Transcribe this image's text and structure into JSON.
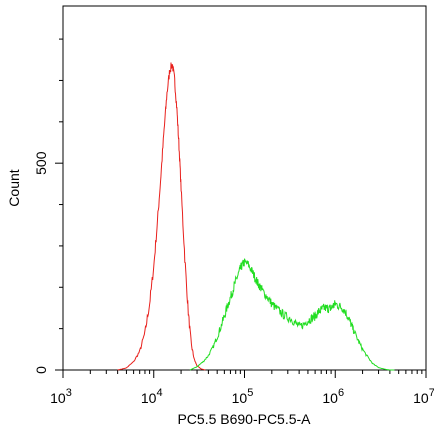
{
  "chart_data": {
    "type": "line",
    "xlabel": "PC5.5 B690-PC5.5-A",
    "ylabel": "Count",
    "xscale": "log",
    "xlim": [
      1000,
      10000000
    ],
    "ylim": [
      0,
      880
    ],
    "grid": false,
    "legend": "none",
    "x_ticks": [
      {
        "value": 1000,
        "base": "10",
        "exp": "3"
      },
      {
        "value": 10000,
        "base": "10",
        "exp": "4"
      },
      {
        "value": 100000,
        "base": "10",
        "exp": "5"
      },
      {
        "value": 1000000,
        "base": "10",
        "exp": "6"
      },
      {
        "value": 10000000,
        "base": "10",
        "exp": "7"
      }
    ],
    "y_ticks": [
      {
        "value": 0,
        "label": "0"
      },
      {
        "value": 500,
        "label": "500"
      }
    ],
    "series": [
      {
        "color": "#e8201c",
        "x": [
          4000,
          5000,
          6000,
          7000,
          8000,
          9000,
          10000,
          11000,
          12000,
          13000,
          14000,
          15000,
          16000,
          17000,
          18000,
          19000,
          20000,
          22000,
          24000,
          26000,
          28000,
          30000,
          33000,
          37000
        ],
        "y": [
          0,
          5,
          20,
          45,
          90,
          160,
          250,
          360,
          470,
          580,
          670,
          725,
          740,
          700,
          630,
          540,
          440,
          270,
          140,
          60,
          25,
          10,
          3,
          0
        ]
      },
      {
        "color": "#22dd22",
        "x": [
          25000,
          30000,
          35000,
          40000,
          45000,
          50000,
          55000,
          60000,
          65000,
          70000,
          75000,
          80000,
          85000,
          90000,
          95000,
          100000,
          110000,
          120000,
          130000,
          140000,
          150000,
          160000,
          180000,
          200000,
          220000,
          250000,
          280000,
          320000,
          360000,
          400000,
          450000,
          500000,
          550000,
          600000,
          650000,
          700000,
          750000,
          800000,
          850000,
          900000,
          950000,
          1000000,
          1100000,
          1200000,
          1300000,
          1400000,
          1500000,
          1600000,
          1800000,
          2000000,
          2300000,
          2600000,
          3000000,
          3500000,
          4000000,
          4500000
        ],
        "y": [
          0,
          8,
          20,
          35,
          55,
          80,
          105,
          130,
          155,
          175,
          195,
          215,
          230,
          245,
          255,
          260,
          255,
          240,
          225,
          210,
          200,
          190,
          175,
          160,
          150,
          140,
          130,
          125,
          115,
          105,
          110,
          120,
          125,
          130,
          140,
          145,
          150,
          150,
          148,
          150,
          155,
          160,
          155,
          150,
          140,
          125,
          110,
          95,
          70,
          50,
          30,
          15,
          6,
          2,
          0,
          0
        ]
      }
    ]
  }
}
